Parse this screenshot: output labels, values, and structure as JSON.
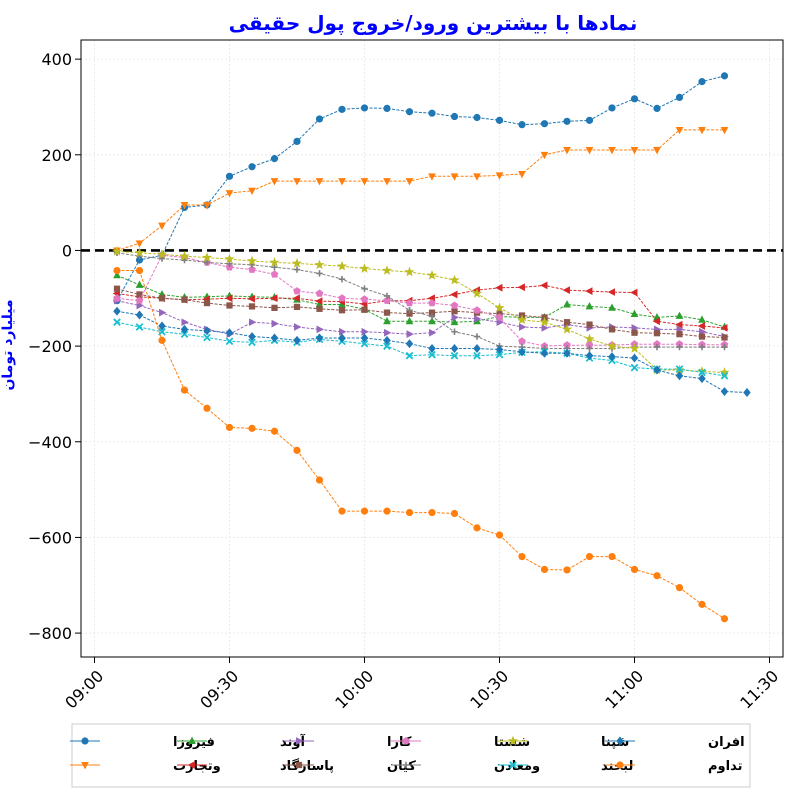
{
  "chart_data": {
    "type": "line",
    "title": "نمادها با بیشترین ورود/خروج پول حقیقی",
    "xlabel": "",
    "ylabel": "میلیارد تومان",
    "x_tick_labels": [
      "09:00",
      "09:30",
      "10:00",
      "10:30",
      "11:00",
      "11:30"
    ],
    "x_tick_minutes": [
      540,
      570,
      600,
      630,
      660,
      690
    ],
    "x_range_minutes": [
      537,
      693
    ],
    "ylim": [
      -850,
      440
    ],
    "y_ticks": [
      400,
      200,
      0,
      -200,
      -400,
      -600,
      -800
    ],
    "y_tick_labels": [
      "400",
      "200",
      "0",
      "−200",
      "−400",
      "−600",
      "−800"
    ],
    "grid": true,
    "zero_line": true,
    "legend_position": "bottom",
    "x_times": [
      "09:05",
      "09:10",
      "09:15",
      "09:20",
      "09:25",
      "09:30",
      "09:35",
      "09:40",
      "09:45",
      "09:50",
      "09:55",
      "10:00",
      "10:05",
      "10:10",
      "10:15",
      "10:20",
      "10:25",
      "10:30",
      "10:35",
      "10:40",
      "10:45",
      "10:50",
      "10:55",
      "11:00",
      "11:05",
      "11:10",
      "11:15",
      "11:20",
      "11:25",
      "11:30"
    ],
    "series": [
      {
        "name": "فیروزا",
        "color": "#1f77b4",
        "marker": "circle",
        "values": [
          -105,
          -20,
          -10,
          90,
          95,
          155,
          175,
          192,
          228,
          275,
          295,
          298,
          297,
          290,
          287,
          280,
          278,
          272,
          263,
          265,
          270,
          272,
          298,
          317,
          297,
          320,
          353,
          365,
          null,
          null
        ]
      },
      {
        "name": "وتجارت",
        "color": "#ff7f0e",
        "marker": "triangle-down",
        "values": [
          0,
          15,
          52,
          95,
          95,
          120,
          125,
          145,
          145,
          145,
          145,
          145,
          145,
          145,
          155,
          155,
          155,
          157,
          160,
          200,
          210,
          210,
          210,
          210,
          210,
          252,
          252,
          252,
          null,
          null
        ]
      },
      {
        "name": "آوند",
        "color": "#2ca02c",
        "marker": "triangle-up",
        "values": [
          -52,
          -72,
          -92,
          -98,
          -97,
          -95,
          -97,
          -98,
          -103,
          -113,
          -113,
          -123,
          -148,
          -148,
          -148,
          -150,
          -148,
          -138,
          -140,
          -140,
          -113,
          -117,
          -120,
          -133,
          -140,
          -137,
          -145,
          -160,
          null,
          null
        ]
      },
      {
        "name": "پاسارگاد",
        "color": "#d62728",
        "marker": "triangle-left",
        "values": [
          -90,
          -97,
          -100,
          -103,
          -102,
          -100,
          -101,
          -100,
          -100,
          -106,
          -107,
          -112,
          -105,
          -105,
          -100,
          -92,
          -83,
          -78,
          -77,
          -73,
          -83,
          -85,
          -87,
          -88,
          -148,
          -155,
          -158,
          -162,
          null,
          null
        ]
      },
      {
        "name": "کارا",
        "color": "#9467bd",
        "marker": "triangle-right",
        "values": [
          -105,
          -115,
          -130,
          -150,
          -165,
          -175,
          -150,
          -153,
          -160,
          -165,
          -170,
          -170,
          -172,
          -175,
          -172,
          -140,
          -143,
          -150,
          -160,
          -162,
          -155,
          -162,
          -160,
          -162,
          -165,
          -165,
          -170,
          -180,
          null,
          null
        ]
      },
      {
        "name": "کیان",
        "color": "#8c564b",
        "marker": "square",
        "values": [
          -80,
          -92,
          -100,
          -103,
          -110,
          -115,
          -117,
          -120,
          -118,
          -122,
          -125,
          -124,
          -130,
          -132,
          -130,
          -127,
          -130,
          -132,
          -136,
          -140,
          -150,
          -155,
          -165,
          -172,
          -173,
          -175,
          -180,
          -182,
          null,
          null
        ]
      },
      {
        "name": "شستا",
        "color": "#e377c2",
        "marker": "pentagon",
        "values": [
          -100,
          -105,
          -10,
          -15,
          -25,
          -35,
          -40,
          -50,
          -85,
          -90,
          -100,
          -102,
          -105,
          -110,
          -110,
          -115,
          -125,
          -140,
          -190,
          -200,
          -198,
          -198,
          -198,
          -196,
          -196,
          -196,
          -197,
          -197,
          null,
          null
        ]
      },
      {
        "name": "ومعادن",
        "color": "#7f7f7f",
        "marker": "plus",
        "values": [
          -5,
          -12,
          -17,
          -20,
          -25,
          -28,
          -30,
          -35,
          -40,
          -48,
          -60,
          -80,
          -95,
          -125,
          -138,
          -170,
          -180,
          -200,
          -202,
          -205,
          -205,
          -205,
          -205,
          -202,
          -202,
          -202,
          -202,
          -202,
          null,
          null
        ]
      },
      {
        "name": "شپنا",
        "color": "#bcbd22",
        "marker": "star",
        "values": [
          -2,
          -5,
          -8,
          -12,
          -15,
          -18,
          -22,
          -25,
          -27,
          -30,
          -33,
          -38,
          -42,
          -45,
          -52,
          -62,
          -90,
          -120,
          -145,
          -150,
          -165,
          -185,
          -200,
          -205,
          -250,
          -250,
          -253,
          -255,
          null,
          null
        ]
      },
      {
        "name": "لبخند",
        "color": "#17becf",
        "marker": "x",
        "values": [
          -150,
          -160,
          -170,
          -175,
          -182,
          -190,
          -192,
          -188,
          -192,
          -186,
          -190,
          -195,
          -200,
          -220,
          -218,
          -220,
          -220,
          -218,
          -213,
          -212,
          -215,
          -225,
          -230,
          -245,
          -248,
          -248,
          -255,
          -262,
          null,
          null
        ]
      },
      {
        "name": "افران",
        "color": "#1f77b4",
        "marker": "diamond",
        "values": [
          -127,
          -135,
          -158,
          -165,
          -168,
          -172,
          -180,
          -183,
          -188,
          -183,
          -183,
          -183,
          -188,
          -195,
          -205,
          -205,
          -205,
          -207,
          -212,
          -215,
          -215,
          -220,
          -222,
          -225,
          -250,
          -262,
          -268,
          -295,
          -297,
          null
        ]
      },
      {
        "name": "تداوم",
        "color": "#ff7f0e",
        "marker": "circle",
        "values": [
          -42,
          -42,
          -188,
          -292,
          -330,
          -370,
          -372,
          -378,
          -418,
          -480,
          -545,
          -545,
          -545,
          -548,
          -548,
          -550,
          -580,
          -595,
          -640,
          -667,
          -668,
          -640,
          -640,
          -667,
          -680,
          -705,
          -740,
          -770,
          null,
          null
        ]
      }
    ]
  }
}
